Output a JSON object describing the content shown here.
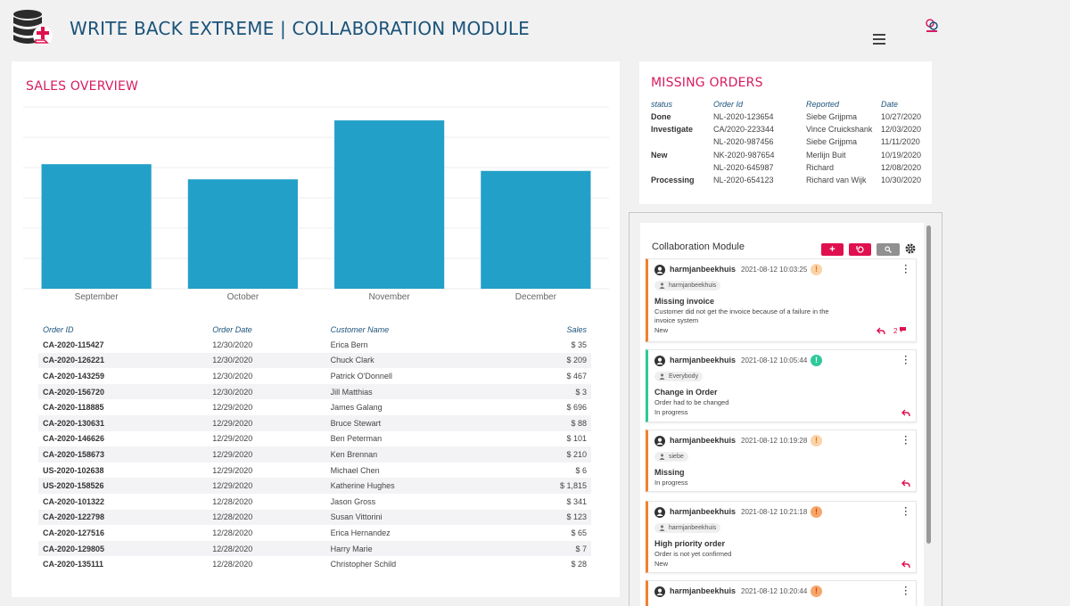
{
  "header": {
    "title": "WRITE BACK EXTREME | COLLABORATION MODULE",
    "accent": "#d81b60",
    "title_color": "#1b5379"
  },
  "sales": {
    "title": "SALES OVERVIEW",
    "columns": [
      "Order ID",
      "Order Date",
      "Customer Name",
      "Sales"
    ],
    "rows": [
      [
        "CA-2020-115427",
        "12/30/2020",
        "Erica Bern",
        "$ 35"
      ],
      [
        "CA-2020-126221",
        "12/30/2020",
        "Chuck Clark",
        "$ 209"
      ],
      [
        "CA-2020-143259",
        "12/30/2020",
        "Patrick O'Donnell",
        "$ 467"
      ],
      [
        "CA-2020-156720",
        "12/30/2020",
        "Jill Matthias",
        "$ 3"
      ],
      [
        "CA-2020-118885",
        "12/29/2020",
        "James Galang",
        "$ 696"
      ],
      [
        "CA-2020-130631",
        "12/29/2020",
        "Bruce Stewart",
        "$ 88"
      ],
      [
        "CA-2020-146626",
        "12/29/2020",
        "Ben Peterman",
        "$ 101"
      ],
      [
        "CA-2020-158673",
        "12/29/2020",
        "Ken Brennan",
        "$ 210"
      ],
      [
        "US-2020-102638",
        "12/29/2020",
        "Michael Chen",
        "$ 6"
      ],
      [
        "US-2020-158526",
        "12/29/2020",
        "Katherine Hughes",
        "$ 1,815"
      ],
      [
        "CA-2020-101322",
        "12/28/2020",
        "Jason Gross",
        "$ 341"
      ],
      [
        "CA-2020-122798",
        "12/28/2020",
        "Susan Vittorini",
        "$ 123"
      ],
      [
        "CA-2020-127516",
        "12/28/2020",
        "Erica Hernandez",
        "$ 65"
      ],
      [
        "CA-2020-129805",
        "12/28/2020",
        "Harry Marie",
        "$ 7"
      ],
      [
        "CA-2020-135111",
        "12/28/2020",
        "Christopher Schild",
        "$ 28"
      ]
    ]
  },
  "chart_data": {
    "type": "bar",
    "categories": [
      "September",
      "October",
      "November",
      "December"
    ],
    "values": [
      74,
      65,
      100,
      70
    ],
    "ylim": [
      0,
      108
    ],
    "grid": true,
    "bar_color": "#22a0c8"
  },
  "missing_orders": {
    "title": "MISSING ORDERS",
    "columns": [
      "status",
      "Order Id",
      "Reported",
      "Date"
    ],
    "rows": [
      [
        "Done",
        "NL-2020-123654",
        "Siebe Grijpma",
        "10/27/2020"
      ],
      [
        "Investigate",
        "CA/2020-223344",
        "Vince Cruickshank",
        "12/03/2020"
      ],
      [
        "",
        "NL-2020-987456",
        "Siebe Grijpma",
        "11/11/2020"
      ],
      [
        "New",
        "NK-2020-987654",
        "Merlijn Buit",
        "10/19/2020"
      ],
      [
        "",
        "NL-2020-645987",
        "Richard",
        "12/08/2020"
      ],
      [
        "Processing",
        "NL-2020-654123",
        "Richard van Wijk",
        "10/30/2020"
      ]
    ]
  },
  "collab": {
    "title": "Collaboration Module",
    "add_label": "+",
    "cards": [
      {
        "user": "harmjanbeekhuis",
        "time": "2021-08-12 10:03:25",
        "priority": "!",
        "tag": "harmjanbeekhuis",
        "subject": "Missing invoice",
        "description": "Customer did not get the invoice because of a failure in the invoice system",
        "status": "New",
        "comments": "2"
      },
      {
        "user": "harmjanbeekhuis",
        "time": "2021-08-12 10:05:44",
        "priority": "!",
        "tag": "Everybody",
        "subject": "Change in Order",
        "description": "Order had to be changed",
        "status": "In progress"
      },
      {
        "user": "harmjanbeekhuis",
        "time": "2021-08-12 10:19:28",
        "priority": "!",
        "tag": "siebe",
        "subject": "Missing",
        "description": "",
        "status": "In progress"
      },
      {
        "user": "harmjanbeekhuis",
        "time": "2021-08-12 10:21:18",
        "priority": "!",
        "tag": "harmjanbeekhuis",
        "subject": "High priority order",
        "description": "Order is not yet confirmed",
        "status": "New"
      },
      {
        "user": "harmjanbeekhuis",
        "time": "2021-08-12 10:20:44",
        "priority": "!"
      }
    ]
  }
}
